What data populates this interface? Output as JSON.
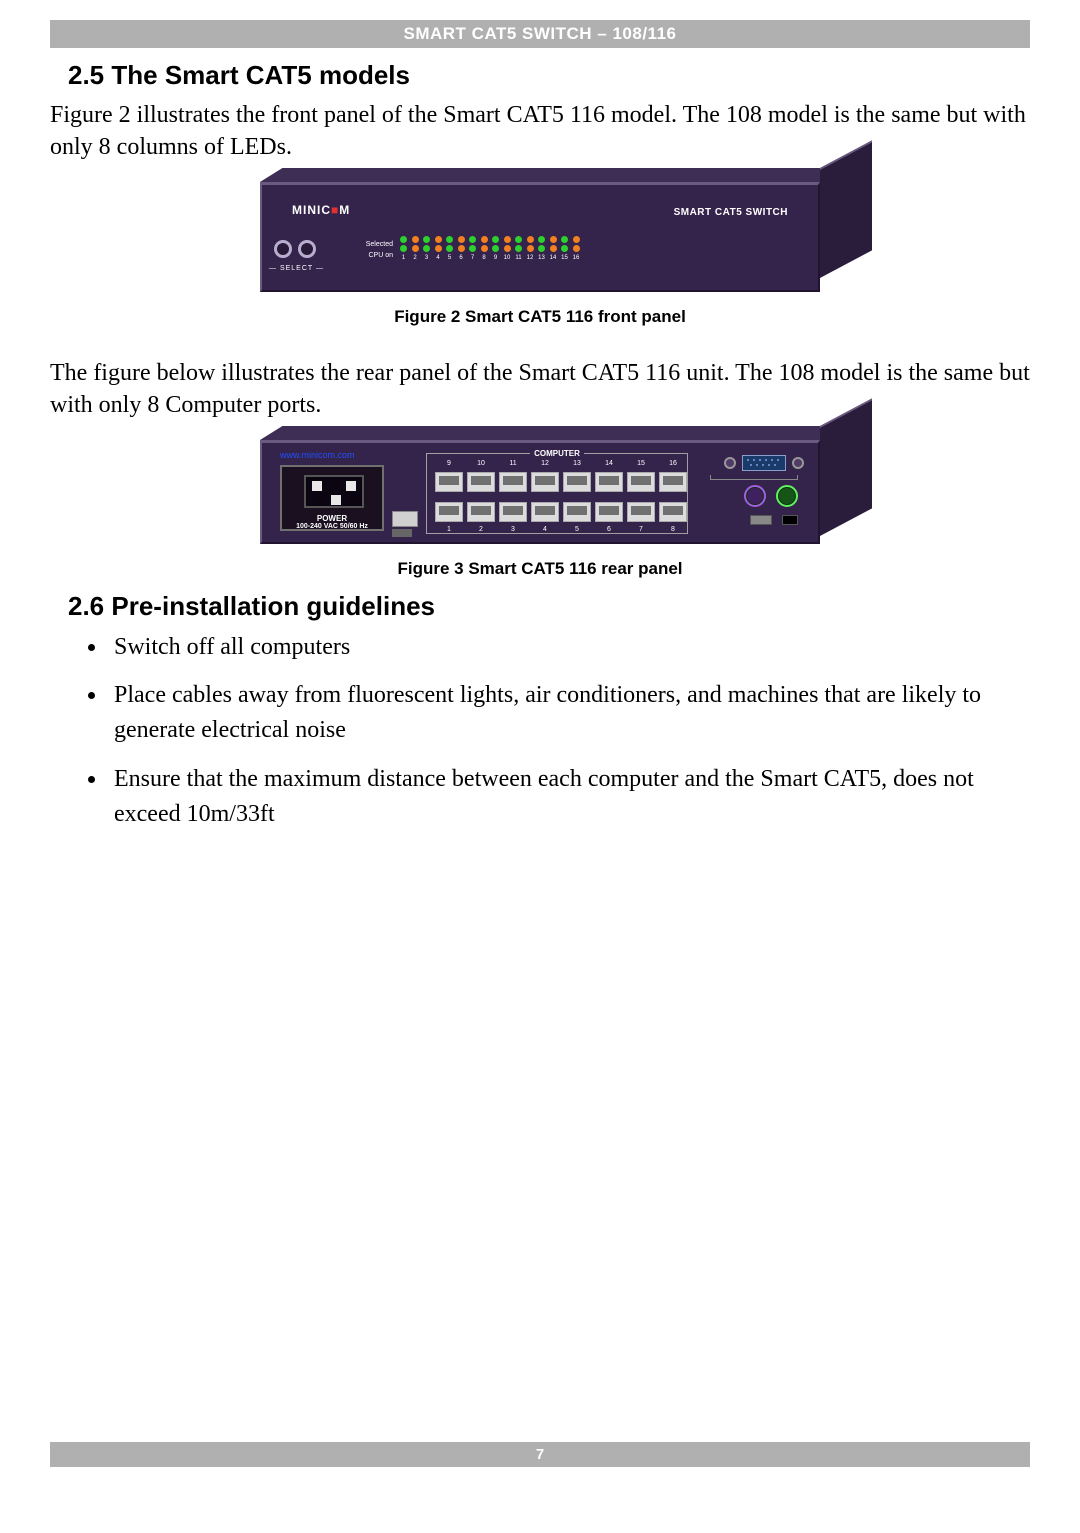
{
  "header": {
    "title": "SMART CAT5 SWITCH – 108/116"
  },
  "section1": {
    "num": "2.5",
    "title": "The Smart CAT5 models",
    "para": "Figure 2 illustrates the front panel of the Smart CAT5 116 model. The 108 model is the same but with only 8 columns of LEDs."
  },
  "figure2": {
    "caption": "Figure 2 Smart CAT5 116 front panel",
    "brand_left": "MINIC",
    "brand_right": "M",
    "brand_red": "■",
    "label_right": "SMART CAT5 SWITCH",
    "select_label": "— SELECT —",
    "led_row1_label": "Selected",
    "led_row2_label": "CPU on",
    "led_count": 16,
    "numbers": [
      "1",
      "2",
      "3",
      "4",
      "5",
      "6",
      "7",
      "8",
      "9",
      "10",
      "11",
      "12",
      "13",
      "14",
      "15",
      "16"
    ],
    "led_colors_row1": [
      "#2dd12d",
      "#f08020"
    ],
    "body_color": "#34234a",
    "highlight_color": "#6a5a80"
  },
  "para_mid": "The figure below illustrates the rear panel of the Smart CAT5 116 unit. The 108 model is the same but with only 8 Computer ports.",
  "figure3": {
    "caption": "Figure 3 Smart CAT5 116 rear panel",
    "url": "www.minicom.com",
    "power_label": "POWER",
    "power_sub": "100-240 VAC 50/60 Hz",
    "computer_label": "COMPUTER",
    "top_ports": [
      "9",
      "10",
      "11",
      "12",
      "13",
      "14",
      "15",
      "16"
    ],
    "bottom_ports": [
      "1",
      "2",
      "3",
      "4",
      "5",
      "6",
      "7",
      "8"
    ],
    "body_color": "#34234a"
  },
  "section2": {
    "num": "2.6",
    "title": "Pre-installation guidelines",
    "bullets": [
      "Switch off all computers",
      "Place cables away from fluorescent lights, air conditioners, and machines that are likely to generate electrical noise",
      "Ensure that the maximum distance between each computer and the Smart CAT5, does not exceed 10m/33ft"
    ]
  },
  "footer": {
    "page": "7"
  },
  "styles": {
    "header_bg": "#b0b0b0",
    "header_fg": "#ffffff",
    "body_font_size_pt": 18,
    "heading_font_size_pt": 20,
    "caption_font_size_pt": 13
  }
}
